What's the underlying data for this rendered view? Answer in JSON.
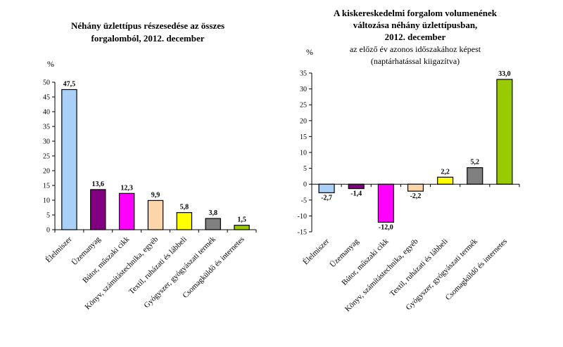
{
  "chart_data": [
    {
      "type": "bar",
      "title_lines": [
        "Néhány üzlettípus részesedése az összes",
        "forgalomból, 2012. december"
      ],
      "ylabel": "%",
      "ylim": [
        0,
        50
      ],
      "ytick_step": 5,
      "grid": false,
      "legend": "none",
      "categories": [
        "Élelmiszer",
        "Üzemanyag",
        "Bútor, műszaki cikk",
        "Könyv, számítástechnika, egyéb",
        "Textil, ruházati és lábbeli",
        "Gyógyszer, gyógyászati termék",
        "Csomagküldő és internetes"
      ],
      "values": [
        47.5,
        13.6,
        12.3,
        9.9,
        5.8,
        3.8,
        1.5
      ],
      "data_labels": [
        "47,5",
        "13,6",
        "12,3",
        "9,9",
        "5,8",
        "3,8",
        "1,5"
      ],
      "colors": [
        "#a9d1f7",
        "#800080",
        "#ff00ff",
        "#fcd5a8",
        "#ffff00",
        "#808080",
        "#99cc00"
      ]
    },
    {
      "type": "bar",
      "title_lines": [
        "A kiskereskedelmi forgalom volumenének",
        "változása néhány üzlettípusban,",
        "2012. december"
      ],
      "subtitle_lines": [
        "az előző év azonos időszakához képest",
        "(naptárhatással kiigazítva)"
      ],
      "ylabel": "%",
      "ylim": [
        -15,
        35
      ],
      "ytick_step": 5,
      "grid": false,
      "legend": "none",
      "categories": [
        "Élelmiszer",
        "Üzemanyag",
        "Bútor, műszaki cikk",
        "Könyv, számítástechnika, egyéb",
        "Textil, ruházati és lábbeli",
        "Gyógyszer, gyógyászati termék",
        "Csomagküldő és internetes"
      ],
      "values": [
        -2.7,
        -1.4,
        -12.0,
        -2.2,
        2.2,
        5.2,
        33.0
      ],
      "data_labels": [
        "-2,7",
        "-1,4",
        "-12,0",
        "-2,2",
        "2,2",
        "5,2",
        "33,0"
      ],
      "colors": [
        "#a9d1f7",
        "#800080",
        "#ff00ff",
        "#fcd5a8",
        "#ffff00",
        "#808080",
        "#99cc00"
      ]
    }
  ]
}
